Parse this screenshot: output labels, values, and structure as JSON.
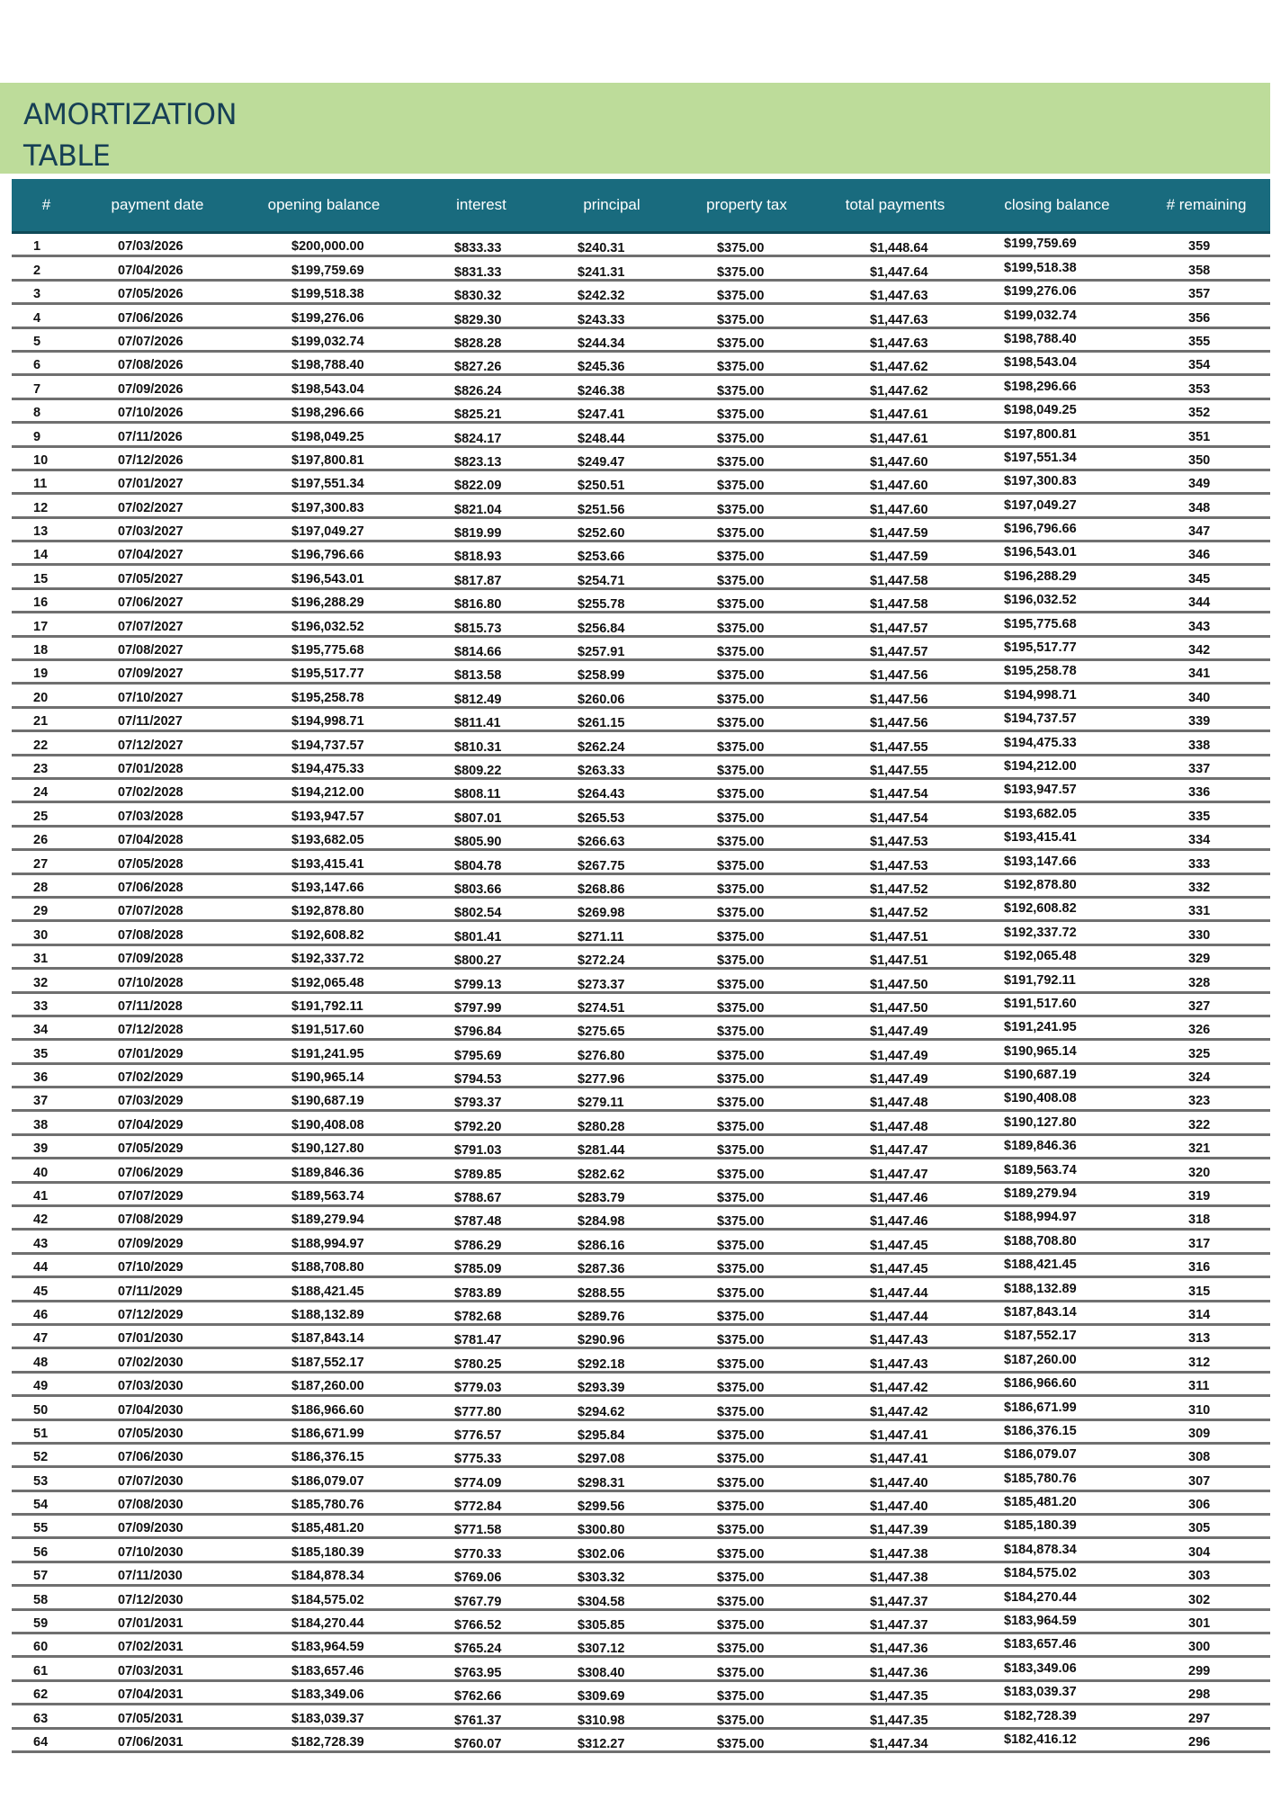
{
  "title": {
    "line1": "AMORTIZATION",
    "line2": "TABLE"
  },
  "colors": {
    "band": "#bddc9a",
    "header": "#196b7e",
    "title": "#163f55"
  },
  "columns": [
    "#",
    "payment date",
    "opening balance",
    "interest",
    "principal",
    "property tax",
    "total payments",
    "closing balance",
    "# remaining"
  ],
  "rows": [
    [
      "1",
      "07/03/2026",
      "$200,000.00",
      "$833.33",
      "$240.31",
      "$375.00",
      "$1,448.64",
      "$199,759.69",
      "359"
    ],
    [
      "2",
      "07/04/2026",
      "$199,759.69",
      "$831.33",
      "$241.31",
      "$375.00",
      "$1,447.64",
      "$199,518.38",
      "358"
    ],
    [
      "3",
      "07/05/2026",
      "$199,518.38",
      "$830.32",
      "$242.32",
      "$375.00",
      "$1,447.63",
      "$199,276.06",
      "357"
    ],
    [
      "4",
      "07/06/2026",
      "$199,276.06",
      "$829.30",
      "$243.33",
      "$375.00",
      "$1,447.63",
      "$199,032.74",
      "356"
    ],
    [
      "5",
      "07/07/2026",
      "$199,032.74",
      "$828.28",
      "$244.34",
      "$375.00",
      "$1,447.63",
      "$198,788.40",
      "355"
    ],
    [
      "6",
      "07/08/2026",
      "$198,788.40",
      "$827.26",
      "$245.36",
      "$375.00",
      "$1,447.62",
      "$198,543.04",
      "354"
    ],
    [
      "7",
      "07/09/2026",
      "$198,543.04",
      "$826.24",
      "$246.38",
      "$375.00",
      "$1,447.62",
      "$198,296.66",
      "353"
    ],
    [
      "8",
      "07/10/2026",
      "$198,296.66",
      "$825.21",
      "$247.41",
      "$375.00",
      "$1,447.61",
      "$198,049.25",
      "352"
    ],
    [
      "9",
      "07/11/2026",
      "$198,049.25",
      "$824.17",
      "$248.44",
      "$375.00",
      "$1,447.61",
      "$197,800.81",
      "351"
    ],
    [
      "10",
      "07/12/2026",
      "$197,800.81",
      "$823.13",
      "$249.47",
      "$375.00",
      "$1,447.60",
      "$197,551.34",
      "350"
    ],
    [
      "11",
      "07/01/2027",
      "$197,551.34",
      "$822.09",
      "$250.51",
      "$375.00",
      "$1,447.60",
      "$197,300.83",
      "349"
    ],
    [
      "12",
      "07/02/2027",
      "$197,300.83",
      "$821.04",
      "$251.56",
      "$375.00",
      "$1,447.60",
      "$197,049.27",
      "348"
    ],
    [
      "13",
      "07/03/2027",
      "$197,049.27",
      "$819.99",
      "$252.60",
      "$375.00",
      "$1,447.59",
      "$196,796.66",
      "347"
    ],
    [
      "14",
      "07/04/2027",
      "$196,796.66",
      "$818.93",
      "$253.66",
      "$375.00",
      "$1,447.59",
      "$196,543.01",
      "346"
    ],
    [
      "15",
      "07/05/2027",
      "$196,543.01",
      "$817.87",
      "$254.71",
      "$375.00",
      "$1,447.58",
      "$196,288.29",
      "345"
    ],
    [
      "16",
      "07/06/2027",
      "$196,288.29",
      "$816.80",
      "$255.78",
      "$375.00",
      "$1,447.58",
      "$196,032.52",
      "344"
    ],
    [
      "17",
      "07/07/2027",
      "$196,032.52",
      "$815.73",
      "$256.84",
      "$375.00",
      "$1,447.57",
      "$195,775.68",
      "343"
    ],
    [
      "18",
      "07/08/2027",
      "$195,775.68",
      "$814.66",
      "$257.91",
      "$375.00",
      "$1,447.57",
      "$195,517.77",
      "342"
    ],
    [
      "19",
      "07/09/2027",
      "$195,517.77",
      "$813.58",
      "$258.99",
      "$375.00",
      "$1,447.56",
      "$195,258.78",
      "341"
    ],
    [
      "20",
      "07/10/2027",
      "$195,258.78",
      "$812.49",
      "$260.06",
      "$375.00",
      "$1,447.56",
      "$194,998.71",
      "340"
    ],
    [
      "21",
      "07/11/2027",
      "$194,998.71",
      "$811.41",
      "$261.15",
      "$375.00",
      "$1,447.56",
      "$194,737.57",
      "339"
    ],
    [
      "22",
      "07/12/2027",
      "$194,737.57",
      "$810.31",
      "$262.24",
      "$375.00",
      "$1,447.55",
      "$194,475.33",
      "338"
    ],
    [
      "23",
      "07/01/2028",
      "$194,475.33",
      "$809.22",
      "$263.33",
      "$375.00",
      "$1,447.55",
      "$194,212.00",
      "337"
    ],
    [
      "24",
      "07/02/2028",
      "$194,212.00",
      "$808.11",
      "$264.43",
      "$375.00",
      "$1,447.54",
      "$193,947.57",
      "336"
    ],
    [
      "25",
      "07/03/2028",
      "$193,947.57",
      "$807.01",
      "$265.53",
      "$375.00",
      "$1,447.54",
      "$193,682.05",
      "335"
    ],
    [
      "26",
      "07/04/2028",
      "$193,682.05",
      "$805.90",
      "$266.63",
      "$375.00",
      "$1,447.53",
      "$193,415.41",
      "334"
    ],
    [
      "27",
      "07/05/2028",
      "$193,415.41",
      "$804.78",
      "$267.75",
      "$375.00",
      "$1,447.53",
      "$193,147.66",
      "333"
    ],
    [
      "28",
      "07/06/2028",
      "$193,147.66",
      "$803.66",
      "$268.86",
      "$375.00",
      "$1,447.52",
      "$192,878.80",
      "332"
    ],
    [
      "29",
      "07/07/2028",
      "$192,878.80",
      "$802.54",
      "$269.98",
      "$375.00",
      "$1,447.52",
      "$192,608.82",
      "331"
    ],
    [
      "30",
      "07/08/2028",
      "$192,608.82",
      "$801.41",
      "$271.11",
      "$375.00",
      "$1,447.51",
      "$192,337.72",
      "330"
    ],
    [
      "31",
      "07/09/2028",
      "$192,337.72",
      "$800.27",
      "$272.24",
      "$375.00",
      "$1,447.51",
      "$192,065.48",
      "329"
    ],
    [
      "32",
      "07/10/2028",
      "$192,065.48",
      "$799.13",
      "$273.37",
      "$375.00",
      "$1,447.50",
      "$191,792.11",
      "328"
    ],
    [
      "33",
      "07/11/2028",
      "$191,792.11",
      "$797.99",
      "$274.51",
      "$375.00",
      "$1,447.50",
      "$191,517.60",
      "327"
    ],
    [
      "34",
      "07/12/2028",
      "$191,517.60",
      "$796.84",
      "$275.65",
      "$375.00",
      "$1,447.49",
      "$191,241.95",
      "326"
    ],
    [
      "35",
      "07/01/2029",
      "$191,241.95",
      "$795.69",
      "$276.80",
      "$375.00",
      "$1,447.49",
      "$190,965.14",
      "325"
    ],
    [
      "36",
      "07/02/2029",
      "$190,965.14",
      "$794.53",
      "$277.96",
      "$375.00",
      "$1,447.49",
      "$190,687.19",
      "324"
    ],
    [
      "37",
      "07/03/2029",
      "$190,687.19",
      "$793.37",
      "$279.11",
      "$375.00",
      "$1,447.48",
      "$190,408.08",
      "323"
    ],
    [
      "38",
      "07/04/2029",
      "$190,408.08",
      "$792.20",
      "$280.28",
      "$375.00",
      "$1,447.48",
      "$190,127.80",
      "322"
    ],
    [
      "39",
      "07/05/2029",
      "$190,127.80",
      "$791.03",
      "$281.44",
      "$375.00",
      "$1,447.47",
      "$189,846.36",
      "321"
    ],
    [
      "40",
      "07/06/2029",
      "$189,846.36",
      "$789.85",
      "$282.62",
      "$375.00",
      "$1,447.47",
      "$189,563.74",
      "320"
    ],
    [
      "41",
      "07/07/2029",
      "$189,563.74",
      "$788.67",
      "$283.79",
      "$375.00",
      "$1,447.46",
      "$189,279.94",
      "319"
    ],
    [
      "42",
      "07/08/2029",
      "$189,279.94",
      "$787.48",
      "$284.98",
      "$375.00",
      "$1,447.46",
      "$188,994.97",
      "318"
    ],
    [
      "43",
      "07/09/2029",
      "$188,994.97",
      "$786.29",
      "$286.16",
      "$375.00",
      "$1,447.45",
      "$188,708.80",
      "317"
    ],
    [
      "44",
      "07/10/2029",
      "$188,708.80",
      "$785.09",
      "$287.36",
      "$375.00",
      "$1,447.45",
      "$188,421.45",
      "316"
    ],
    [
      "45",
      "07/11/2029",
      "$188,421.45",
      "$783.89",
      "$288.55",
      "$375.00",
      "$1,447.44",
      "$188,132.89",
      "315"
    ],
    [
      "46",
      "07/12/2029",
      "$188,132.89",
      "$782.68",
      "$289.76",
      "$375.00",
      "$1,447.44",
      "$187,843.14",
      "314"
    ],
    [
      "47",
      "07/01/2030",
      "$187,843.14",
      "$781.47",
      "$290.96",
      "$375.00",
      "$1,447.43",
      "$187,552.17",
      "313"
    ],
    [
      "48",
      "07/02/2030",
      "$187,552.17",
      "$780.25",
      "$292.18",
      "$375.00",
      "$1,447.43",
      "$187,260.00",
      "312"
    ],
    [
      "49",
      "07/03/2030",
      "$187,260.00",
      "$779.03",
      "$293.39",
      "$375.00",
      "$1,447.42",
      "$186,966.60",
      "311"
    ],
    [
      "50",
      "07/04/2030",
      "$186,966.60",
      "$777.80",
      "$294.62",
      "$375.00",
      "$1,447.42",
      "$186,671.99",
      "310"
    ],
    [
      "51",
      "07/05/2030",
      "$186,671.99",
      "$776.57",
      "$295.84",
      "$375.00",
      "$1,447.41",
      "$186,376.15",
      "309"
    ],
    [
      "52",
      "07/06/2030",
      "$186,376.15",
      "$775.33",
      "$297.08",
      "$375.00",
      "$1,447.41",
      "$186,079.07",
      "308"
    ],
    [
      "53",
      "07/07/2030",
      "$186,079.07",
      "$774.09",
      "$298.31",
      "$375.00",
      "$1,447.40",
      "$185,780.76",
      "307"
    ],
    [
      "54",
      "07/08/2030",
      "$185,780.76",
      "$772.84",
      "$299.56",
      "$375.00",
      "$1,447.40",
      "$185,481.20",
      "306"
    ],
    [
      "55",
      "07/09/2030",
      "$185,481.20",
      "$771.58",
      "$300.80",
      "$375.00",
      "$1,447.39",
      "$185,180.39",
      "305"
    ],
    [
      "56",
      "07/10/2030",
      "$185,180.39",
      "$770.33",
      "$302.06",
      "$375.00",
      "$1,447.38",
      "$184,878.34",
      "304"
    ],
    [
      "57",
      "07/11/2030",
      "$184,878.34",
      "$769.06",
      "$303.32",
      "$375.00",
      "$1,447.38",
      "$184,575.02",
      "303"
    ],
    [
      "58",
      "07/12/2030",
      "$184,575.02",
      "$767.79",
      "$304.58",
      "$375.00",
      "$1,447.37",
      "$184,270.44",
      "302"
    ],
    [
      "59",
      "07/01/2031",
      "$184,270.44",
      "$766.52",
      "$305.85",
      "$375.00",
      "$1,447.37",
      "$183,964.59",
      "301"
    ],
    [
      "60",
      "07/02/2031",
      "$183,964.59",
      "$765.24",
      "$307.12",
      "$375.00",
      "$1,447.36",
      "$183,657.46",
      "300"
    ],
    [
      "61",
      "07/03/2031",
      "$183,657.46",
      "$763.95",
      "$308.40",
      "$375.00",
      "$1,447.36",
      "$183,349.06",
      "299"
    ],
    [
      "62",
      "07/04/2031",
      "$183,349.06",
      "$762.66",
      "$309.69",
      "$375.00",
      "$1,447.35",
      "$183,039.37",
      "298"
    ],
    [
      "63",
      "07/05/2031",
      "$183,039.37",
      "$761.37",
      "$310.98",
      "$375.00",
      "$1,447.35",
      "$182,728.39",
      "297"
    ],
    [
      "64",
      "07/06/2031",
      "$182,728.39",
      "$760.07",
      "$312.27",
      "$375.00",
      "$1,447.34",
      "$182,416.12",
      "296"
    ]
  ]
}
